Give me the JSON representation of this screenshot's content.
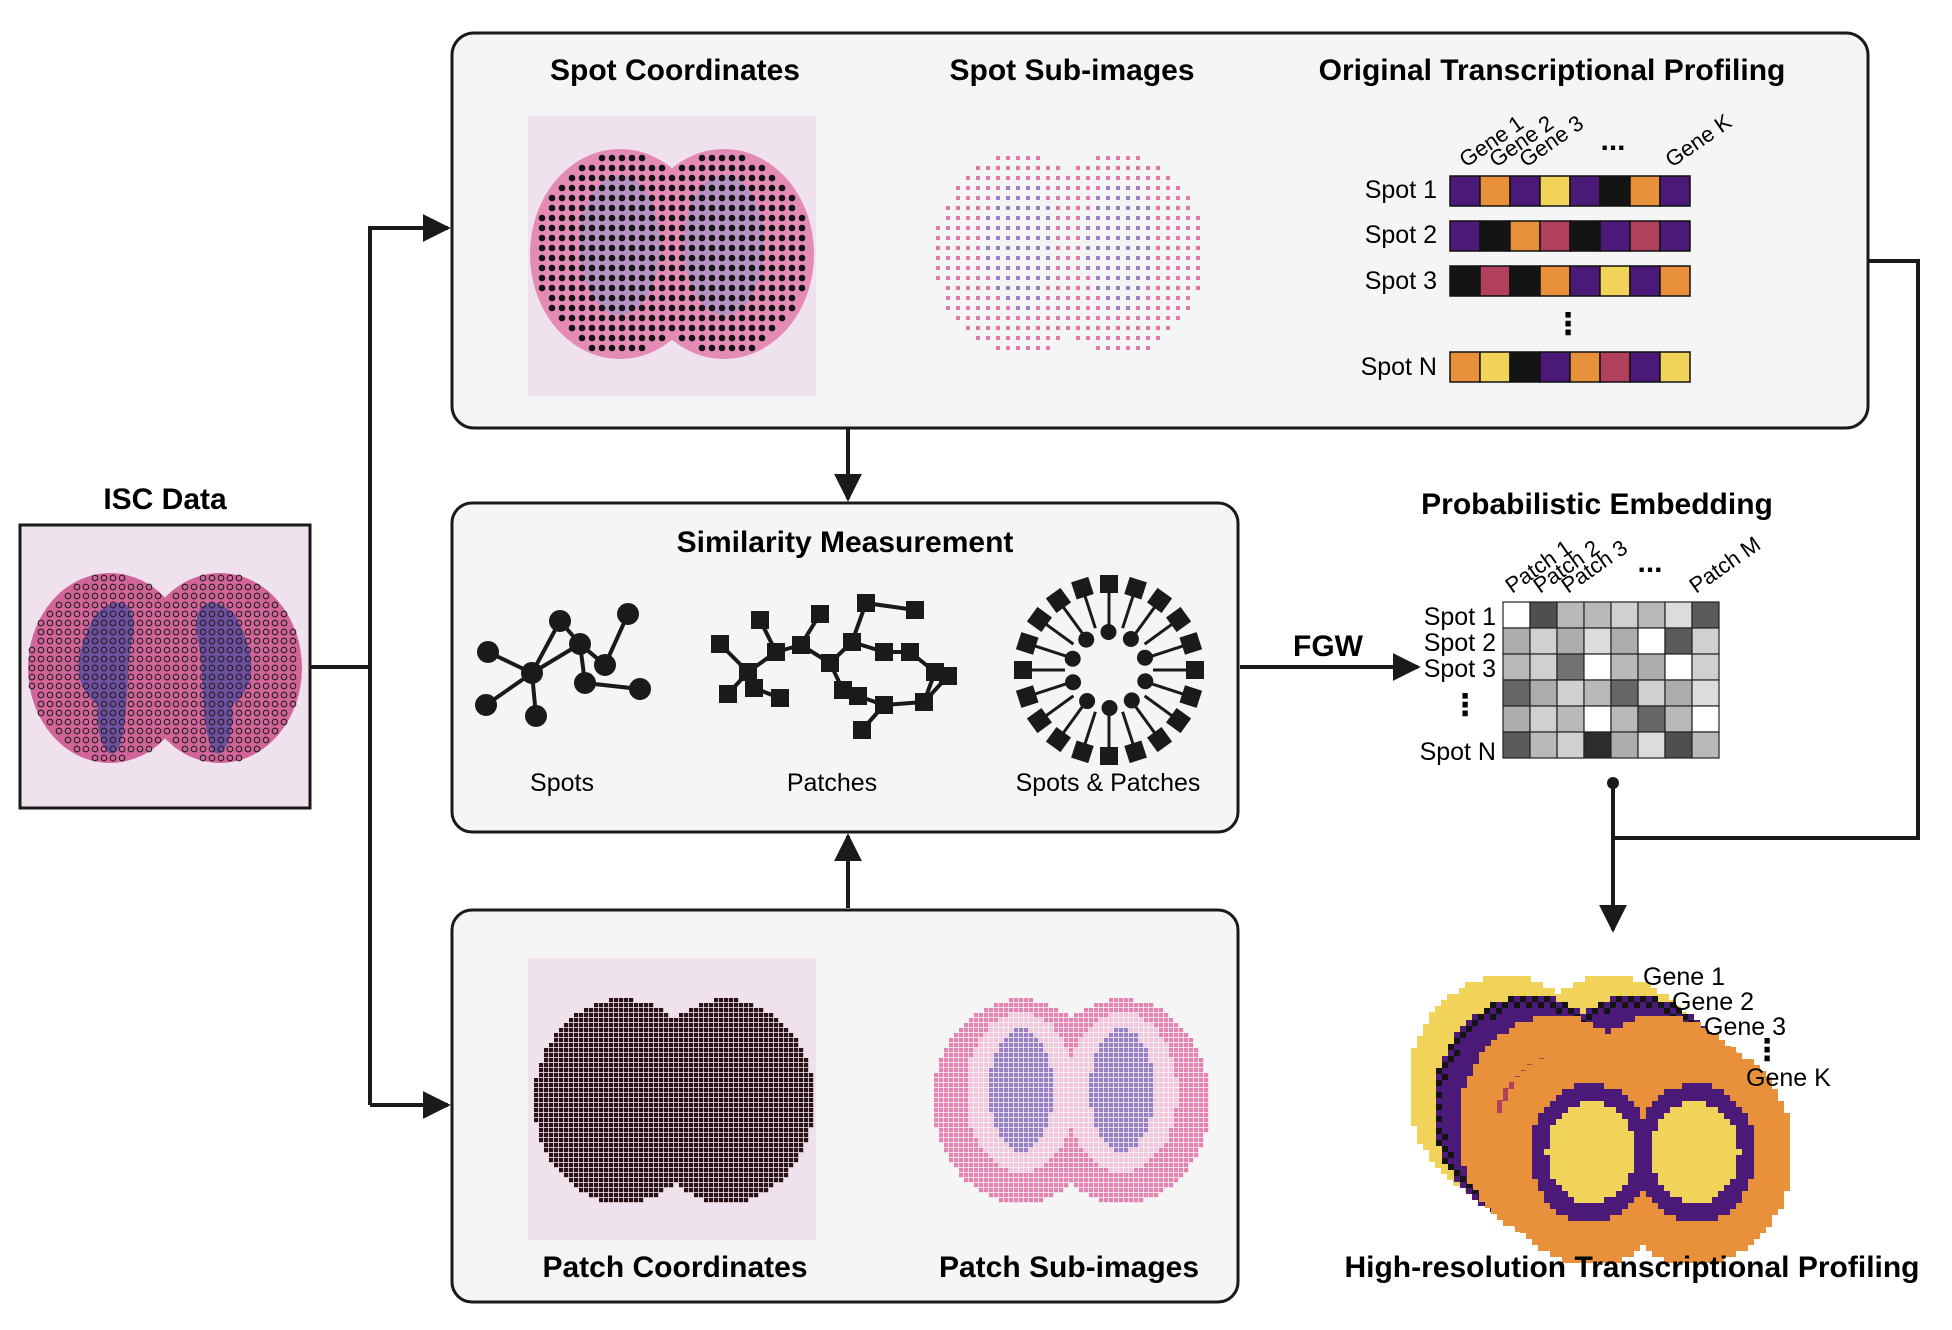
{
  "isc": {
    "title": "ISC Data"
  },
  "top_panel": {
    "spot_coordinates_title": "Spot Coordinates",
    "spot_subimages_title": "Spot Sub-images",
    "transcription_title": "Original Transcriptional Profiling",
    "gene_headers": [
      "Gene 1",
      "Gene 2",
      "Gene 3",
      "Gene K"
    ],
    "ellipsis": "...",
    "vertical_ellipsis": "⋮",
    "spot_rows": [
      {
        "label": "Spot 1",
        "cells": [
          "#4b1a78",
          "#e8913a",
          "#4b1a78",
          "#f2d35a",
          "#4b1a78",
          "#141414",
          "#e8913a",
          "#4b1a78"
        ]
      },
      {
        "label": "Spot 2",
        "cells": [
          "#4b1a78",
          "#141414",
          "#e8913a",
          "#b0405c",
          "#141414",
          "#4b1a78",
          "#b0405c",
          "#4b1a78"
        ]
      },
      {
        "label": "Spot 3",
        "cells": [
          "#141414",
          "#b0405c",
          "#141414",
          "#e8913a",
          "#4b1a78",
          "#f2d35a",
          "#4b1a78",
          "#e8913a"
        ]
      },
      {
        "label": "Spot N",
        "cells": [
          "#e8913a",
          "#f2d35a",
          "#141414",
          "#4b1a78",
          "#e8913a",
          "#b0405c",
          "#4b1a78",
          "#f2d35a"
        ]
      }
    ]
  },
  "similarity_panel": {
    "title": "Similarity Measurement",
    "graph_labels": [
      "Spots",
      "Patches",
      "Spots & Patches"
    ]
  },
  "bottom_panel": {
    "patch_coordinates_title": "Patch Coordinates",
    "patch_subimages_title": "Patch Sub-images"
  },
  "fgw_label": "FGW",
  "embedding": {
    "title": "Probabilistic Embedding",
    "patch_headers": [
      "Patch 1",
      "Patch 2",
      "Patch 3",
      "Patch M"
    ],
    "ellipsis": "...",
    "vertical_ellipsis": "⋮",
    "row_labels": [
      "Spot 1",
      "Spot 2",
      "Spot 3",
      "Spot N"
    ],
    "matrix": [
      [
        0.0,
        0.75,
        0.3,
        0.3,
        0.2,
        0.3,
        0.15,
        0.7
      ],
      [
        0.35,
        0.2,
        0.35,
        0.15,
        0.35,
        0.0,
        0.7,
        0.2
      ],
      [
        0.3,
        0.2,
        0.6,
        0.0,
        0.3,
        0.35,
        0.0,
        0.2
      ],
      [
        0.65,
        0.35,
        0.2,
        0.3,
        0.65,
        0.2,
        0.35,
        0.15
      ],
      [
        0.35,
        0.2,
        0.3,
        0.0,
        0.3,
        0.65,
        0.3,
        0.0
      ],
      [
        0.7,
        0.3,
        0.2,
        0.9,
        0.35,
        0.15,
        0.75,
        0.3
      ]
    ]
  },
  "output": {
    "title": "High-resolution Transcriptional Profiling",
    "gene_labels": [
      "Gene 1",
      "Gene 2",
      "Gene 3",
      "Gene K"
    ],
    "colors": {
      "purple": "#4b1a78",
      "orange": "#e8913a",
      "yellow": "#f2d35a",
      "black": "#141414",
      "rose": "#b0405c"
    }
  }
}
